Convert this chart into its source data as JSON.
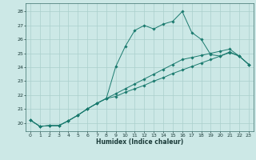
{
  "xlabel": "Humidex (Indice chaleur)",
  "xlim": [
    -0.5,
    23.5
  ],
  "ylim": [
    19.4,
    28.6
  ],
  "xticks": [
    0,
    1,
    2,
    3,
    4,
    5,
    6,
    7,
    8,
    9,
    10,
    11,
    12,
    13,
    14,
    15,
    16,
    17,
    18,
    19,
    20,
    21,
    22,
    23
  ],
  "yticks": [
    20,
    21,
    22,
    23,
    24,
    25,
    26,
    27,
    28
  ],
  "line_color": "#1a7a6e",
  "bg_color": "#cce8e6",
  "grid_color": "#aacfcc",
  "line1_x": [
    0,
    1,
    2,
    3,
    4,
    5,
    6,
    7,
    8,
    9,
    10,
    11,
    12,
    13,
    14,
    15,
    16,
    17,
    18,
    19,
    20,
    21,
    22,
    23
  ],
  "line1_y": [
    20.2,
    19.75,
    19.8,
    19.8,
    20.15,
    20.55,
    21.0,
    21.4,
    21.75,
    24.05,
    25.5,
    26.65,
    27.0,
    26.75,
    27.1,
    27.3,
    28.0,
    26.5,
    26.0,
    24.9,
    24.8,
    25.1,
    24.8,
    24.2
  ],
  "line2_x": [
    0,
    1,
    2,
    3,
    4,
    5,
    6,
    7,
    8,
    9,
    10,
    11,
    12,
    13,
    14,
    15,
    16,
    17,
    18,
    19,
    20,
    21,
    22,
    23
  ],
  "line2_y": [
    20.2,
    19.75,
    19.8,
    19.8,
    20.15,
    20.55,
    21.0,
    21.4,
    21.75,
    21.9,
    22.2,
    22.45,
    22.7,
    23.0,
    23.25,
    23.55,
    23.8,
    24.05,
    24.3,
    24.55,
    24.8,
    25.05,
    24.8,
    24.2
  ],
  "line3_x": [
    0,
    1,
    2,
    3,
    4,
    5,
    6,
    7,
    8,
    9,
    10,
    11,
    12,
    13,
    14,
    15,
    16,
    17,
    18,
    19,
    20,
    21,
    22,
    23
  ],
  "line3_y": [
    20.2,
    19.75,
    19.8,
    19.8,
    20.15,
    20.55,
    21.0,
    21.4,
    21.75,
    22.1,
    22.45,
    22.8,
    23.15,
    23.5,
    23.85,
    24.2,
    24.55,
    24.7,
    24.85,
    25.0,
    25.15,
    25.3,
    24.8,
    24.2
  ]
}
